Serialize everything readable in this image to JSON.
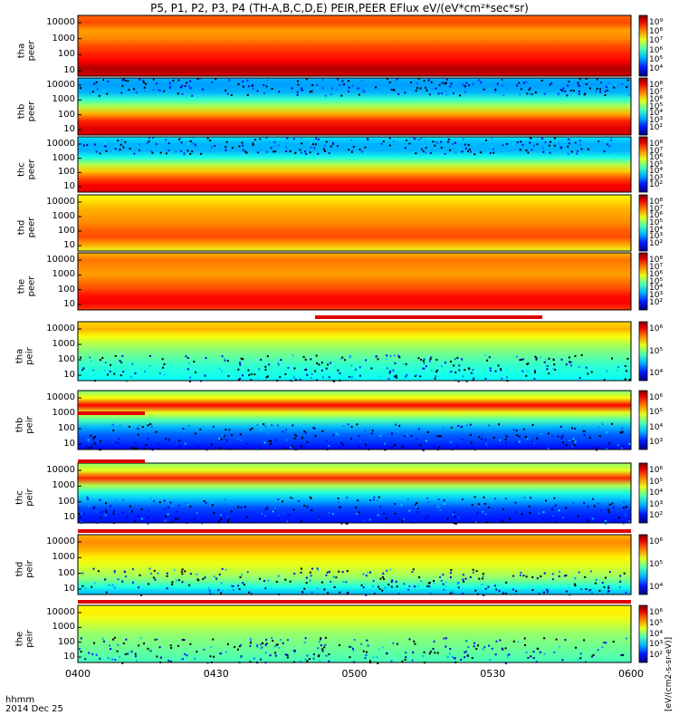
{
  "title": "P5, P1, P2, P3, P4 (TH-A,B,C,D,E) PEIR,PEER EFlux eV/(eV*cm²*sec*sr)",
  "colorbar_label": "[eV/(cm2-s-sr-eV)]",
  "x_axis": {
    "corner_label_1": "hhmm",
    "corner_label_2": "2014 Dec 25",
    "ticks": [
      "0400",
      "0430",
      "0500",
      "0530",
      "0600"
    ]
  },
  "chart_data": {
    "type": "heatmap",
    "x_range": [
      "04:00",
      "06:00"
    ],
    "y_scale": "log",
    "y_ticks": [
      "10",
      "100",
      "1000",
      "10000"
    ],
    "panels": [
      {
        "label": "tha\npeer",
        "probe": "TH-A",
        "species": "electron",
        "colorbar_ticks": [
          "10⁴",
          "10⁵",
          "10⁶",
          "10⁷",
          "10⁸",
          "10⁹"
        ],
        "dominant_level": "high"
      },
      {
        "label": "thb\npeer",
        "probe": "TH-B",
        "species": "electron",
        "colorbar_ticks": [
          "10²",
          "10³",
          "10⁴",
          "10⁵",
          "10⁶",
          "10⁷",
          "10⁸"
        ],
        "dominant_level": "medium"
      },
      {
        "label": "thc\npeer",
        "probe": "TH-C",
        "species": "electron",
        "colorbar_ticks": [
          "10²",
          "10³",
          "10⁴",
          "10⁵",
          "10⁶",
          "10⁷",
          "10⁸"
        ],
        "dominant_level": "medium"
      },
      {
        "label": "thd\npeer",
        "probe": "TH-D",
        "species": "electron",
        "colorbar_ticks": [
          "10²",
          "10³",
          "10⁴",
          "10⁵",
          "10⁶",
          "10⁷",
          "10⁸"
        ],
        "dominant_level": "high"
      },
      {
        "label": "the\npeer",
        "probe": "TH-E",
        "species": "electron",
        "colorbar_ticks": [
          "10²",
          "10³",
          "10⁴",
          "10⁵",
          "10⁶",
          "10⁷",
          "10⁸"
        ],
        "dominant_level": "high"
      },
      {
        "label": "tha\npeir",
        "probe": "TH-A",
        "species": "ion",
        "colorbar_ticks": [
          "10⁴",
          "10⁵",
          "10⁶"
        ],
        "dominant_level": "low"
      },
      {
        "label": "thb\npeir",
        "probe": "TH-B",
        "species": "ion",
        "colorbar_ticks": [
          "10³",
          "10⁴",
          "10⁵",
          "10⁶"
        ],
        "dominant_level": "low"
      },
      {
        "label": "thc\npeir",
        "probe": "TH-C",
        "species": "ion",
        "colorbar_ticks": [
          "10²",
          "10³",
          "10⁴",
          "10⁵",
          "10⁶"
        ],
        "dominant_level": "low"
      },
      {
        "label": "thd\npeir",
        "probe": "TH-D",
        "species": "ion",
        "colorbar_ticks": [
          "10⁴",
          "10⁵",
          "10⁶"
        ],
        "dominant_level": "low"
      },
      {
        "label": "the\npeir",
        "probe": "TH-E",
        "species": "ion",
        "colorbar_ticks": [
          "10²",
          "10³",
          "10⁴",
          "10⁵",
          "10⁶"
        ],
        "dominant_level": "low"
      }
    ]
  }
}
